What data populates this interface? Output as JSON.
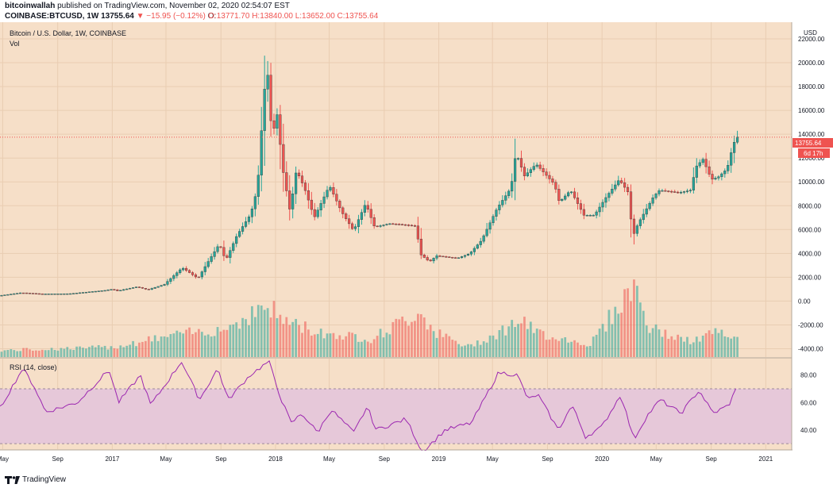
{
  "header": {
    "publisher": "bitcoinwallah",
    "published_text": "published on TradingView.com, November 02, 2020 02:54:07 EST",
    "symbol": "COINBASE:BTCUSD, 1W",
    "last_price": "13755.64",
    "change": "▼ −15.95 (−0.12%)",
    "open": "O:13771.70",
    "high": "H:13840.00",
    "low": "L:13652.00",
    "close": "C:13755.64"
  },
  "chart_title": "Bitcoin / U.S. Dollar, 1W, COINBASE",
  "volume_label": "Vol",
  "rsi_label": "RSI (14, close)",
  "currency_label": "USD",
  "price_tag": "13755.64",
  "countdown_tag": "6d 17h",
  "footer_brand": "TradingView",
  "colors": {
    "background": "#f6dfc8",
    "up": "#26a69a",
    "down": "#ef5350",
    "rsi_line": "#9c27b0",
    "rsi_band": "#e6c8d9",
    "price_line": "#ef5350"
  },
  "chart_data": [
    {
      "type": "candlestick",
      "title": "Bitcoin / U.S. Dollar, 1W, COINBASE",
      "ylabel": "USD",
      "x_range": [
        "2016-04-25",
        "2021-02-28"
      ],
      "ylim": [
        -4700,
        23400
      ],
      "yticks": [
        -4000,
        -2000,
        0,
        2000,
        4000,
        6000,
        8000,
        10000,
        12000,
        14000,
        16000,
        18000,
        20000,
        22000
      ],
      "ytick_labels": [
        "-4000.00",
        "-2000.00",
        "0.00",
        "2000.00",
        "4000.00",
        "6000.00",
        "8000.00",
        "10000.00",
        "12000.00",
        "14000.00",
        "16000.00",
        "18000.00",
        "20000.00",
        "22000.00"
      ],
      "xticks": [
        "2016-05-01",
        "2016-09-01",
        "2017-01-01",
        "2017-05-01",
        "2017-09-01",
        "2018-01-01",
        "2018-05-01",
        "2018-09-01",
        "2019-01-01",
        "2019-05-01",
        "2019-09-01",
        "2020-01-01",
        "2020-05-01",
        "2020-09-01",
        "2021-01-01"
      ],
      "xtick_labels": [
        "May",
        "Sep",
        "2017",
        "May",
        "Sep",
        "2018",
        "May",
        "Sep",
        "2019",
        "May",
        "Sep",
        "2020",
        "May",
        "Sep",
        "2021"
      ],
      "last_price": 13755.64,
      "price_anchors": [
        [
          "2016-04-25",
          450
        ],
        [
          "2016-06-15",
          700
        ],
        [
          "2016-08-01",
          600
        ],
        [
          "2016-10-01",
          620
        ],
        [
          "2016-12-20",
          900
        ],
        [
          "2017-01-05",
          1000
        ],
        [
          "2017-01-15",
          850
        ],
        [
          "2017-03-01",
          1200
        ],
        [
          "2017-03-25",
          950
        ],
        [
          "2017-05-01",
          1400
        ],
        [
          "2017-06-10",
          2800
        ],
        [
          "2017-07-15",
          1900
        ],
        [
          "2017-08-05",
          3200
        ],
        [
          "2017-09-01",
          4800
        ],
        [
          "2017-09-15",
          3400
        ],
        [
          "2017-10-10",
          5500
        ],
        [
          "2017-11-10",
          7300
        ],
        [
          "2017-11-25",
          9500
        ],
        [
          "2017-12-10",
          17500
        ],
        [
          "2017-12-17",
          19500
        ],
        [
          "2017-12-28",
          13500
        ],
        [
          "2018-01-07",
          16000
        ],
        [
          "2018-01-21",
          11000
        ],
        [
          "2018-02-06",
          7500
        ],
        [
          "2018-02-20",
          11000
        ],
        [
          "2018-03-10",
          9500
        ],
        [
          "2018-04-01",
          7000
        ],
        [
          "2018-05-05",
          9700
        ],
        [
          "2018-06-01",
          7500
        ],
        [
          "2018-06-28",
          5900
        ],
        [
          "2018-07-25",
          8200
        ],
        [
          "2018-08-14",
          6200
        ],
        [
          "2018-09-15",
          6500
        ],
        [
          "2018-10-20",
          6400
        ],
        [
          "2018-11-14",
          6300
        ],
        [
          "2018-11-25",
          3900
        ],
        [
          "2018-12-15",
          3300
        ],
        [
          "2018-12-30",
          3800
        ],
        [
          "2019-02-15",
          3600
        ],
        [
          "2019-03-15",
          4000
        ],
        [
          "2019-04-10",
          5100
        ],
        [
          "2019-05-15",
          7800
        ],
        [
          "2019-06-15",
          9500
        ],
        [
          "2019-06-26",
          12500
        ],
        [
          "2019-07-15",
          10500
        ],
        [
          "2019-08-10",
          11500
        ],
        [
          "2019-09-20",
          9800
        ],
        [
          "2019-10-01",
          8300
        ],
        [
          "2019-10-26",
          9300
        ],
        [
          "2019-11-25",
          7200
        ],
        [
          "2019-12-18",
          7200
        ],
        [
          "2020-01-15",
          8800
        ],
        [
          "2020-02-12",
          10200
        ],
        [
          "2020-03-05",
          9000
        ],
        [
          "2020-03-12",
          5300
        ],
        [
          "2020-03-25",
          6500
        ],
        [
          "2020-04-29",
          8800
        ],
        [
          "2020-05-12",
          9300
        ],
        [
          "2020-06-25",
          9100
        ],
        [
          "2020-07-20",
          9300
        ],
        [
          "2020-08-02",
          11300
        ],
        [
          "2020-08-17",
          11900
        ],
        [
          "2020-09-05",
          10200
        ],
        [
          "2020-09-20",
          10400
        ],
        [
          "2020-10-10",
          11100
        ],
        [
          "2020-10-22",
          12900
        ],
        [
          "2020-10-30",
          13755.64
        ]
      ]
    },
    {
      "type": "bar",
      "title": "Vol",
      "note": "volume bars drawn on the same pane, heights relative to the visible maximum",
      "relative_volume_anchors": [
        [
          "2016-04-25",
          0.08
        ],
        [
          "2016-12-31",
          0.12
        ],
        [
          "2017-05-01",
          0.25
        ],
        [
          "2017-09-10",
          0.35
        ],
        [
          "2017-12-10",
          0.62
        ],
        [
          "2018-01-14",
          0.45
        ],
        [
          "2018-04-01",
          0.3
        ],
        [
          "2018-08-01",
          0.22
        ],
        [
          "2018-11-18",
          0.55
        ],
        [
          "2018-12-20",
          0.3
        ],
        [
          "2019-03-01",
          0.12
        ],
        [
          "2019-05-15",
          0.3
        ],
        [
          "2019-06-26",
          0.45
        ],
        [
          "2019-08-01",
          0.3
        ],
        [
          "2019-12-01",
          0.15
        ],
        [
          "2020-03-12",
          0.88
        ],
        [
          "2020-04-10",
          0.35
        ],
        [
          "2020-07-15",
          0.18
        ],
        [
          "2020-09-05",
          0.3
        ],
        [
          "2020-10-30",
          0.2
        ]
      ]
    },
    {
      "type": "line",
      "title": "RSI (14, close)",
      "ylim": [
        26,
        92
      ],
      "yticks": [
        40,
        60,
        80
      ],
      "ytick_labels": [
        "40.00",
        "60.00",
        "80.00"
      ],
      "band": [
        30,
        70
      ],
      "rsi_anchors": [
        [
          "2016-04-25",
          56
        ],
        [
          "2016-06-15",
          85
        ],
        [
          "2016-07-10",
          72
        ],
        [
          "2016-08-05",
          53
        ],
        [
          "2016-10-15",
          60
        ],
        [
          "2016-12-25",
          84
        ],
        [
          "2017-01-15",
          60
        ],
        [
          "2017-03-05",
          80
        ],
        [
          "2017-03-28",
          58
        ],
        [
          "2017-06-05",
          90
        ],
        [
          "2017-07-15",
          62
        ],
        [
          "2017-08-25",
          85
        ],
        [
          "2017-09-17",
          62
        ],
        [
          "2017-11-05",
          80
        ],
        [
          "2017-12-17",
          90
        ],
        [
          "2018-01-14",
          62
        ],
        [
          "2018-02-05",
          45
        ],
        [
          "2018-03-01",
          52
        ],
        [
          "2018-04-05",
          38
        ],
        [
          "2018-05-05",
          55
        ],
        [
          "2018-06-25",
          38
        ],
        [
          "2018-07-25",
          57
        ],
        [
          "2018-08-14",
          40
        ],
        [
          "2018-10-20",
          48
        ],
        [
          "2018-11-25",
          24
        ],
        [
          "2018-12-15",
          30
        ],
        [
          "2019-01-15",
          40
        ],
        [
          "2019-03-15",
          45
        ],
        [
          "2019-05-15",
          82
        ],
        [
          "2019-06-26",
          80
        ],
        [
          "2019-07-20",
          62
        ],
        [
          "2019-08-10",
          66
        ],
        [
          "2019-09-25",
          40
        ],
        [
          "2019-10-26",
          58
        ],
        [
          "2019-11-25",
          35
        ],
        [
          "2019-12-31",
          42
        ],
        [
          "2020-02-12",
          66
        ],
        [
          "2020-03-12",
          33
        ],
        [
          "2020-04-10",
          50
        ],
        [
          "2020-05-10",
          62
        ],
        [
          "2020-06-25",
          52
        ],
        [
          "2020-08-05",
          69
        ],
        [
          "2020-09-05",
          52
        ],
        [
          "2020-10-10",
          58
        ],
        [
          "2020-10-30",
          72
        ]
      ]
    }
  ]
}
